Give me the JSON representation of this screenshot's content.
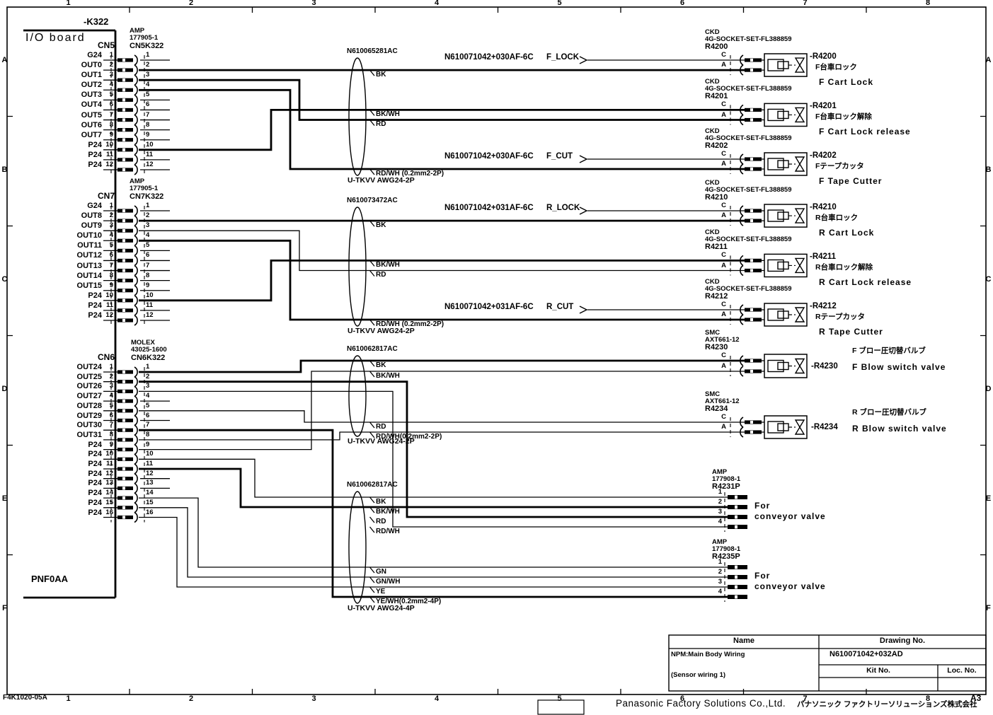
{
  "sheet": {
    "ref": "-K322",
    "board": "I/O board",
    "board_code": "PNF0AA",
    "form_no": "F4K1020-05A",
    "size": "A3",
    "company_en": "Panasonic Factory Solutions Co.,Ltd.",
    "company_jp": "パナソニック ファクトリーソリューションズ株式会社",
    "grid_cols": [
      "1",
      "2",
      "3",
      "4",
      "5",
      "6",
      "7",
      "8"
    ],
    "grid_rows": [
      "A",
      "B",
      "C",
      "D",
      "E",
      "F"
    ]
  },
  "title_block": {
    "name_header": "Name",
    "drawing_header": "Drawing No.",
    "name1": "NPM:Main Body Wiring",
    "name2": "(Sensor wiring 1)",
    "drawing_no": "N610071042+032AD",
    "kit_header": "Kit No.",
    "loc_header": "Loc. No."
  },
  "connectors": [
    {
      "name": "CN5",
      "mfr": "AMP",
      "part": "177905-1",
      "harness": "CN5K322",
      "pins": [
        {
          "n": "1",
          "label": "G24"
        },
        {
          "n": "2",
          "label": "OUT0"
        },
        {
          "n": "3",
          "label": "OUT1"
        },
        {
          "n": "4",
          "label": "OUT2"
        },
        {
          "n": "5",
          "label": "OUT3"
        },
        {
          "n": "6",
          "label": "OUT4"
        },
        {
          "n": "7",
          "label": "OUT5"
        },
        {
          "n": "8",
          "label": "OUT6"
        },
        {
          "n": "9",
          "label": "OUT7"
        },
        {
          "n": "10",
          "label": "P24"
        },
        {
          "n": "11",
          "label": "P24"
        },
        {
          "n": "12",
          "label": "P24"
        }
      ]
    },
    {
      "name": "CN7",
      "mfr": "AMP",
      "part": "177905-1",
      "harness": "CN7K322",
      "pins": [
        {
          "n": "1",
          "label": "G24"
        },
        {
          "n": "2",
          "label": "OUT8"
        },
        {
          "n": "3",
          "label": "OUT9"
        },
        {
          "n": "4",
          "label": "OUT10"
        },
        {
          "n": "5",
          "label": "OUT11"
        },
        {
          "n": "6",
          "label": "OUT12"
        },
        {
          "n": "7",
          "label": "OUT13"
        },
        {
          "n": "8",
          "label": "OUT14"
        },
        {
          "n": "9",
          "label": "OUT15"
        },
        {
          "n": "10",
          "label": "P24"
        },
        {
          "n": "11",
          "label": "P24"
        },
        {
          "n": "12",
          "label": "P24"
        }
      ]
    },
    {
      "name": "CN6",
      "mfr": "MOLEX",
      "part": "43025-1600",
      "harness": "CN6K322",
      "pins": [
        {
          "n": "1",
          "label": "OUT24"
        },
        {
          "n": "2",
          "label": "OUT25"
        },
        {
          "n": "3",
          "label": "OUT26"
        },
        {
          "n": "4",
          "label": "OUT27"
        },
        {
          "n": "5",
          "label": "OUT28"
        },
        {
          "n": "6",
          "label": "OUT29"
        },
        {
          "n": "7",
          "label": "OUT30"
        },
        {
          "n": "8",
          "label": "OUT31"
        },
        {
          "n": "9",
          "label": "P24"
        },
        {
          "n": "10",
          "label": "P24"
        },
        {
          "n": "11",
          "label": "P24"
        },
        {
          "n": "12",
          "label": "P24"
        },
        {
          "n": "13",
          "label": "P24"
        },
        {
          "n": "14",
          "label": "P24"
        },
        {
          "n": "15",
          "label": "P24"
        },
        {
          "n": "16",
          "label": "P24"
        }
      ]
    }
  ],
  "cables": [
    {
      "part": "N610065281AC",
      "spec": "U-TKVV AWG24-2P",
      "wires": [
        "BK",
        "BK/WH",
        "RD",
        "RD/WH (0.2mm2-2P)"
      ]
    },
    {
      "part": "N610073472AC",
      "spec": "U-TKVV AWG24-2P",
      "wires": [
        "BK",
        "BK/WH",
        "RD",
        "RD/WH (0.2mm2-2P)"
      ]
    },
    {
      "part": "N610062817AC",
      "spec": "U-TKVV AWG24-2P",
      "wires": [
        "BK",
        "BK/WH",
        "RD",
        "RD/WH(0.2mm2-2P)"
      ]
    },
    {
      "part": "N610062817AC",
      "spec": "U-TKVV AWG24-4P",
      "wires": [
        "BK",
        "BK/WH",
        "RD",
        "RD/WH",
        "GN",
        "GN/WH",
        "YE",
        "YE/WH(0.2mm2-4P)"
      ]
    }
  ],
  "signals": [
    {
      "code": "N610071042+030AF-6C",
      "name": "F_LOCK"
    },
    {
      "code": "N610071042+030AF-6C",
      "name": "F_CUT"
    },
    {
      "code": "N610071042+031AF-6C",
      "name": "R_LOCK"
    },
    {
      "code": "N610071042+031AF-6C",
      "name": "R_CUT"
    }
  ],
  "devices": [
    {
      "mfr": "CKD",
      "part": "4G-SOCKET-SET-FL388859",
      "ref": "R4200",
      "tag": "-R4200",
      "jp": "F台車ロック",
      "en": "F Cart Lock",
      "pin_c": "C",
      "pin_a": "A"
    },
    {
      "mfr": "CKD",
      "part": "4G-SOCKET-SET-FL388859",
      "ref": "R4201",
      "tag": "-R4201",
      "jp": "F台車ロック解除",
      "en": "F Cart Lock release",
      "pin_c": "C",
      "pin_a": "A"
    },
    {
      "mfr": "CKD",
      "part": "4G-SOCKET-SET-FL388859",
      "ref": "R4202",
      "tag": "-R4202",
      "jp": "Fテープカッタ",
      "en": "F Tape Cutter",
      "pin_c": "C",
      "pin_a": "A"
    },
    {
      "mfr": "CKD",
      "part": "4G-SOCKET-SET-FL388859",
      "ref": "R4210",
      "tag": "-R4210",
      "jp": "R台車ロック",
      "en": "R Cart Lock",
      "pin_c": "C",
      "pin_a": "A"
    },
    {
      "mfr": "CKD",
      "part": "4G-SOCKET-SET-FL388859",
      "ref": "R4211",
      "tag": "-R4211",
      "jp": "R台車ロック解除",
      "en": "R Cart Lock release",
      "pin_c": "C",
      "pin_a": "A"
    },
    {
      "mfr": "CKD",
      "part": "4G-SOCKET-SET-FL388859",
      "ref": "R4212",
      "tag": "-R4212",
      "jp": "Rテープカッタ",
      "en": "R Tape Cutter",
      "pin_c": "C",
      "pin_a": "A"
    },
    {
      "mfr": "SMC",
      "part": "AXT661-12",
      "ref": "R4230",
      "tag": "-R4230",
      "jp": "F ブロー圧切替バルブ",
      "en": "F Blow switch valve",
      "pin_c": "C",
      "pin_a": "A"
    },
    {
      "mfr": "SMC",
      "part": "AXT661-12",
      "ref": "R4234",
      "tag": "-R4234",
      "jp": "R ブロー圧切替バルブ",
      "en": "R Blow switch valve",
      "pin_c": "C",
      "pin_a": "A"
    }
  ],
  "plugs": [
    {
      "mfr": "AMP",
      "part": "177908-1",
      "ref": "R4231P",
      "pins": [
        "1",
        "2",
        "3",
        "4"
      ],
      "desc1": "For",
      "desc2": "conveyor valve"
    },
    {
      "mfr": "AMP",
      "part": "177908-1",
      "ref": "R4235P",
      "pins": [
        "1",
        "2",
        "3",
        "4"
      ],
      "desc1": "For",
      "desc2": "conveyor valve"
    }
  ]
}
